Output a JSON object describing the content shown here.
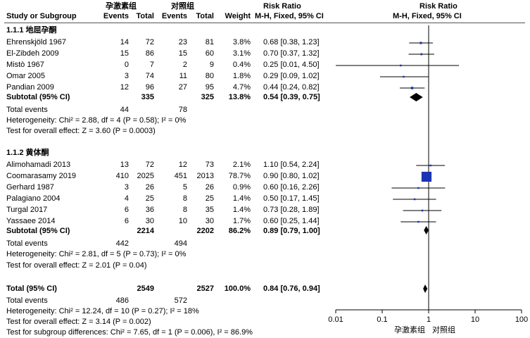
{
  "header": {
    "group_exp": "孕激素组",
    "group_ctl": "对照组",
    "study_col": "Study or Subgroup",
    "events": "Events",
    "total": "Total",
    "weight": "Weight",
    "rr_title": "Risk Ratio",
    "rr_method": "M-H, Fixed, 95% CI",
    "plot_title": "Risk Ratio",
    "plot_method": "M-H, Fixed, 95% CI"
  },
  "subgroups": [
    {
      "title": "1.1.1 地屈孕酮",
      "studies": [
        {
          "name": "Ehrenskjöld 1967",
          "e_ev": "14",
          "e_tot": "72",
          "c_ev": "23",
          "c_tot": "81",
          "weight": "3.8%",
          "ci": "0.68 [0.38, 1.23]"
        },
        {
          "name": "El-Zibdeh 2009",
          "e_ev": "15",
          "e_tot": "86",
          "c_ev": "15",
          "c_tot": "60",
          "weight": "3.1%",
          "ci": "0.70 [0.37, 1.32]"
        },
        {
          "name": "Mistò 1967",
          "e_ev": "0",
          "e_tot": "7",
          "c_ev": "2",
          "c_tot": "9",
          "weight": "0.4%",
          "ci": "0.25 [0.01, 4.50]"
        },
        {
          "name": "Omar 2005",
          "e_ev": "3",
          "e_tot": "74",
          "c_ev": "11",
          "c_tot": "80",
          "weight": "1.8%",
          "ci": "0.29 [0.09, 1.02]"
        },
        {
          "name": "Pandian 2009",
          "e_ev": "12",
          "e_tot": "96",
          "c_ev": "27",
          "c_tot": "95",
          "weight": "4.7%",
          "ci": "0.44 [0.24, 0.82]"
        }
      ],
      "subtotal": {
        "label": "Subtotal (95% CI)",
        "e_tot": "335",
        "c_tot": "325",
        "weight": "13.8%",
        "ci": "0.54 [0.39, 0.75]"
      },
      "total_events": {
        "label": "Total events",
        "e": "44",
        "c": "78"
      },
      "heterogeneity": "Heterogeneity: Chi² = 2.88, df = 4 (P = 0.58); I² = 0%",
      "overall": "Test for overall effect: Z = 3.60 (P = 0.0003)"
    },
    {
      "title": "1.1.2 黄体酮",
      "studies": [
        {
          "name": "Alimohamadi 2013",
          "e_ev": "13",
          "e_tot": "72",
          "c_ev": "12",
          "c_tot": "73",
          "weight": "2.1%",
          "ci": "1.10 [0.54, 2.24]"
        },
        {
          "name": "Coomarasamy 2019",
          "e_ev": "410",
          "e_tot": "2025",
          "c_ev": "451",
          "c_tot": "2013",
          "weight": "78.7%",
          "ci": "0.90 [0.80, 1.02]"
        },
        {
          "name": "Gerhard 1987",
          "e_ev": "3",
          "e_tot": "26",
          "c_ev": "5",
          "c_tot": "26",
          "weight": "0.9%",
          "ci": "0.60 [0.16, 2.26]"
        },
        {
          "name": "Palagiano 2004",
          "e_ev": "4",
          "e_tot": "25",
          "c_ev": "8",
          "c_tot": "25",
          "weight": "1.4%",
          "ci": "0.50 [0.17, 1.45]"
        },
        {
          "name": "Turgal 2017",
          "e_ev": "6",
          "e_tot": "36",
          "c_ev": "8",
          "c_tot": "35",
          "weight": "1.4%",
          "ci": "0.73 [0.28, 1.89]"
        },
        {
          "name": "Yassaee 2014",
          "e_ev": "6",
          "e_tot": "30",
          "c_ev": "10",
          "c_tot": "30",
          "weight": "1.7%",
          "ci": "0.60 [0.25, 1.44]"
        }
      ],
      "subtotal": {
        "label": "Subtotal (95% CI)",
        "e_tot": "2214",
        "c_tot": "2202",
        "weight": "86.2%",
        "ci": "0.89 [0.79, 1.00]"
      },
      "total_events": {
        "label": "Total events",
        "e": "442",
        "c": "494"
      },
      "heterogeneity": "Heterogeneity: Chi² = 2.81, df = 5 (P = 0.73); I² = 0%",
      "overall": "Test for overall effect: Z = 2.01 (P = 0.04)"
    }
  ],
  "total": {
    "label": "Total (95% CI)",
    "e_tot": "2549",
    "c_tot": "2527",
    "weight": "100.0%",
    "ci": "0.84 [0.76, 0.94]"
  },
  "total_events": {
    "label": "Total events",
    "e": "486",
    "c": "572"
  },
  "heterogeneity": "Heterogeneity: Chi² = 12.24, df = 10 (P = 0.27); I² = 18%",
  "overall": "Test for overall effect: Z = 3.14 (P = 0.002)",
  "subgroup_diff": "Test for subgroup differences: Chi² = 7.65, df = 1 (P = 0.006), I² = 86.9%",
  "axis": {
    "ticks": [
      "0.01",
      "0.1",
      "1",
      "10",
      "100"
    ],
    "label_left": "孕激素组",
    "label_right": "对照组"
  },
  "chart_data": {
    "type": "scatter",
    "x_scale": "log",
    "xlim": [
      0.01,
      100
    ],
    "null_line": 1,
    "points": [
      {
        "study": "Ehrenskjöld 1967",
        "rr": 0.68,
        "lo": 0.38,
        "hi": 1.23,
        "weight": 3.8
      },
      {
        "study": "El-Zibdeh 2009",
        "rr": 0.7,
        "lo": 0.37,
        "hi": 1.32,
        "weight": 3.1
      },
      {
        "study": "Mistò 1967",
        "rr": 0.25,
        "lo": 0.01,
        "hi": 4.5,
        "weight": 0.4
      },
      {
        "study": "Omar 2005",
        "rr": 0.29,
        "lo": 0.09,
        "hi": 1.02,
        "weight": 1.8
      },
      {
        "study": "Pandian 2009",
        "rr": 0.44,
        "lo": 0.24,
        "hi": 0.82,
        "weight": 4.7
      },
      {
        "study": "Subtotal (95% CI)",
        "rr": 0.54,
        "lo": 0.39,
        "hi": 0.75,
        "weight": 13.8,
        "diamond": true
      },
      {
        "study": "Alimohamadi 2013",
        "rr": 1.1,
        "lo": 0.54,
        "hi": 2.24,
        "weight": 2.1
      },
      {
        "study": "Coomarasamy 2019",
        "rr": 0.9,
        "lo": 0.8,
        "hi": 1.02,
        "weight": 78.7
      },
      {
        "study": "Gerhard 1987",
        "rr": 0.6,
        "lo": 0.16,
        "hi": 2.26,
        "weight": 0.9
      },
      {
        "study": "Palagiano 2004",
        "rr": 0.5,
        "lo": 0.17,
        "hi": 1.45,
        "weight": 1.4
      },
      {
        "study": "Turgal 2017",
        "rr": 0.73,
        "lo": 0.28,
        "hi": 1.89,
        "weight": 1.4
      },
      {
        "study": "Yassaee 2014",
        "rr": 0.6,
        "lo": 0.25,
        "hi": 1.44,
        "weight": 1.7
      },
      {
        "study": "Subtotal (95% CI)",
        "rr": 0.89,
        "lo": 0.79,
        "hi": 1.0,
        "weight": 86.2,
        "diamond": true
      },
      {
        "study": "Total (95% CI)",
        "rr": 0.84,
        "lo": 0.76,
        "hi": 0.94,
        "weight": 100.0,
        "diamond": true
      }
    ],
    "colors": {
      "square": "#1a33b3",
      "marker": "#000000"
    }
  }
}
